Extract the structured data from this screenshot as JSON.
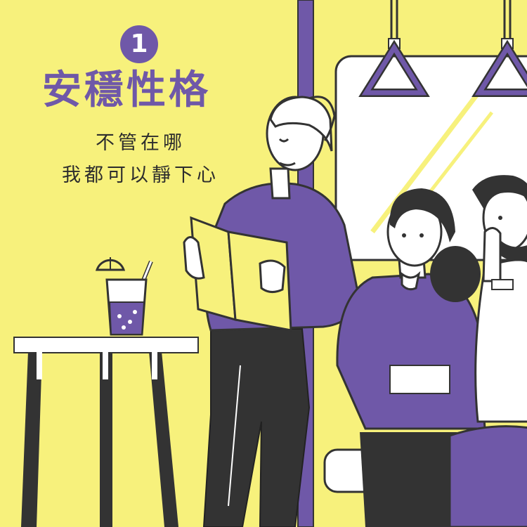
{
  "badge": {
    "number": "1"
  },
  "heading": {
    "title": "安穩性格"
  },
  "caption": {
    "line1": "不管在哪",
    "line2": "我都可以靜下心"
  },
  "colors": {
    "background": "#f7f17c",
    "accent": "#6f58a8",
    "dark": "#333333",
    "white": "#ffffff"
  }
}
